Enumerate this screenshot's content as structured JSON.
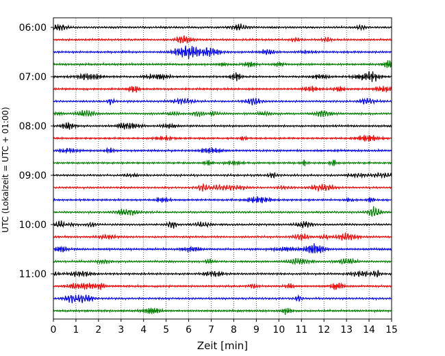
{
  "chart_data": {
    "type": "line",
    "xlabel": "Zeit  [min]",
    "ylabel": "UTC (Lokalzeit = UTC + 01:00)",
    "xlim": [
      0,
      15
    ],
    "x_ticks": [
      "0",
      "1",
      "2",
      "3",
      "4",
      "5",
      "6",
      "7",
      "8",
      "9",
      "10",
      "11",
      "12",
      "13",
      "14",
      "15"
    ],
    "y_ticks": [
      "06:00",
      "07:00",
      "08:00",
      "09:00",
      "10:00",
      "11:00"
    ],
    "trace_interval_min": 15,
    "first_trace": "06:00",
    "trace_count": 24,
    "trace_colors": [
      "#000000",
      "#ff0000",
      "#0000ff",
      "#007f00"
    ],
    "grid": true,
    "grid_axis": "x",
    "grid_style": "dotted"
  }
}
